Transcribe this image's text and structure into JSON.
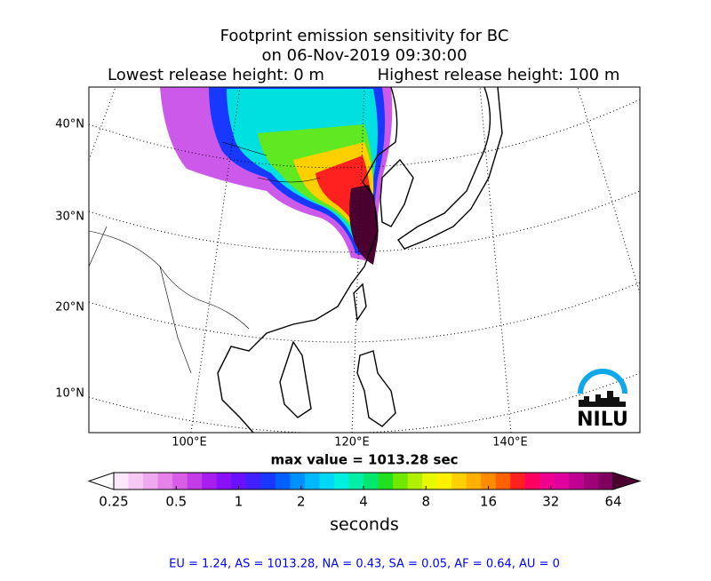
{
  "title": "Footprint emission sensitivity for BC",
  "subtitle": "on 06-Nov-2019 09:30:00",
  "release": {
    "lowest": "Lowest release height: 0 m",
    "highest": "Highest release height: 100 m"
  },
  "map": {
    "lat_labels": [
      "40°N",
      "30°N",
      "20°N",
      "10°N"
    ],
    "lon_labels": [
      "100°E",
      "120°E",
      "140°E"
    ],
    "logo": "NILU"
  },
  "max_value": "max value = 1013.28 sec",
  "colorbar": {
    "label": "seconds",
    "scale": "log",
    "lim": [
      0.25,
      64
    ],
    "ticks": [
      0.25,
      0.5,
      1,
      2,
      4,
      8,
      16,
      32,
      64
    ],
    "under_color": "#ffffff",
    "over_color": "#4b0030",
    "colors": [
      "#fde8fb",
      "#f8c8f4",
      "#f0a8ee",
      "#e682ea",
      "#d85ee6",
      "#c43ce8",
      "#a81ef0",
      "#8a10f8",
      "#6a10ff",
      "#4020ff",
      "#1838ff",
      "#0060ff",
      "#0090ff",
      "#00b8ff",
      "#00d8f8",
      "#00f0e0",
      "#00f0a8",
      "#00e870",
      "#20e020",
      "#70e800",
      "#b0f000",
      "#e8f800",
      "#fff000",
      "#ffd000",
      "#ffb000",
      "#ff8c00",
      "#ff6000",
      "#ff2020",
      "#ff0060",
      "#f00090",
      "#e000a0",
      "#c00090",
      "#a00078",
      "#800060"
    ]
  },
  "footer": "EU = 1.24,  AS = 1013.28,  NA = 0.43,  SA = 0.05,  AF = 0.64,  AU = 0"
}
